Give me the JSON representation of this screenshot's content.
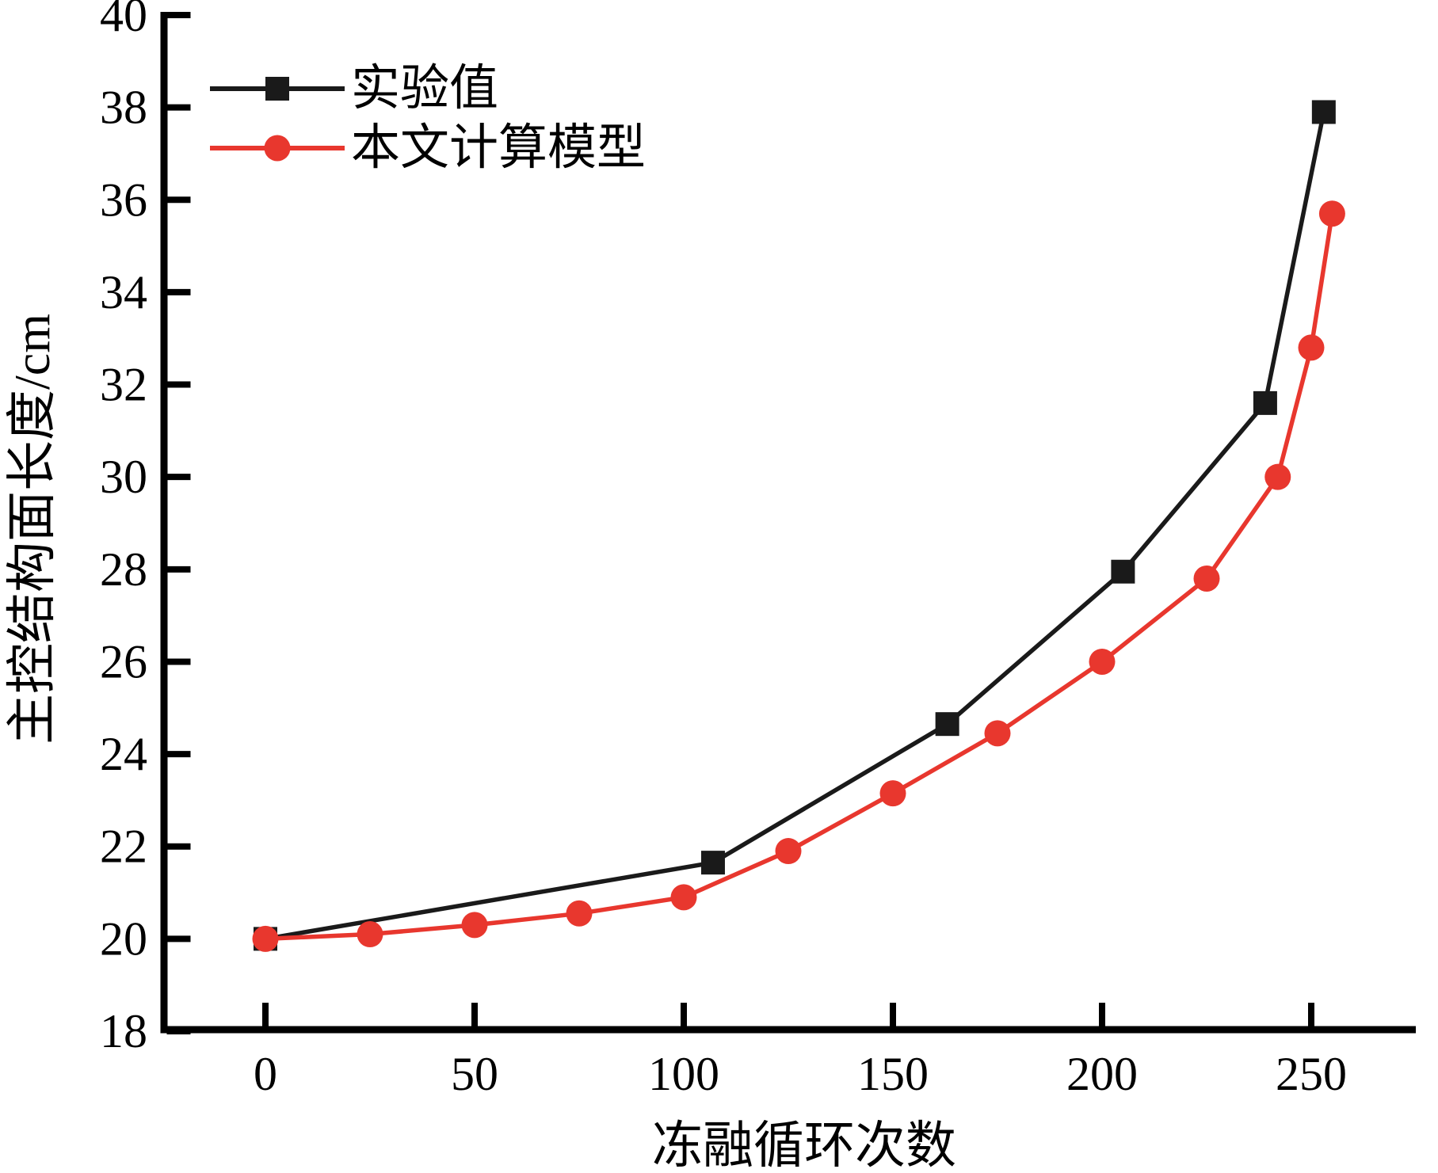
{
  "chart_data": {
    "type": "line",
    "title": "",
    "xlabel": "冻融循环次数",
    "ylabel": "主控结构面长度/cm",
    "xlim": [
      -25,
      275
    ],
    "ylim": [
      18,
      40
    ],
    "x_ticks": [
      0,
      50,
      100,
      150,
      200,
      250
    ],
    "y_ticks": [
      18,
      20,
      22,
      24,
      26,
      28,
      30,
      32,
      34,
      36,
      38,
      40
    ],
    "grid": false,
    "legend_position": "inside-top-left",
    "series": [
      {
        "name": "实验值",
        "marker": "square",
        "color": "#1a1a1a",
        "line_width": 5.5,
        "points": [
          [
            0,
            20.0
          ],
          [
            107,
            21.65
          ],
          [
            163,
            24.65
          ],
          [
            205,
            27.95
          ],
          [
            239,
            31.6
          ],
          [
            253,
            37.9
          ]
        ]
      },
      {
        "name": "本文计算模型",
        "marker": "circle",
        "color": "#e8372e",
        "line_width": 5.5,
        "points": [
          [
            0,
            20.0
          ],
          [
            25,
            20.1
          ],
          [
            50,
            20.3
          ],
          [
            75,
            20.55
          ],
          [
            100,
            20.9
          ],
          [
            125,
            21.9
          ],
          [
            150,
            23.15
          ],
          [
            175,
            24.45
          ],
          [
            200,
            26.0
          ],
          [
            225,
            27.8
          ],
          [
            242,
            30.0
          ],
          [
            250,
            32.8
          ],
          [
            255,
            35.7
          ]
        ]
      }
    ]
  },
  "colors": {
    "background": "#ffffff",
    "axis": "#000000",
    "experimental": "#1a1a1a",
    "model": "#e8372e"
  }
}
